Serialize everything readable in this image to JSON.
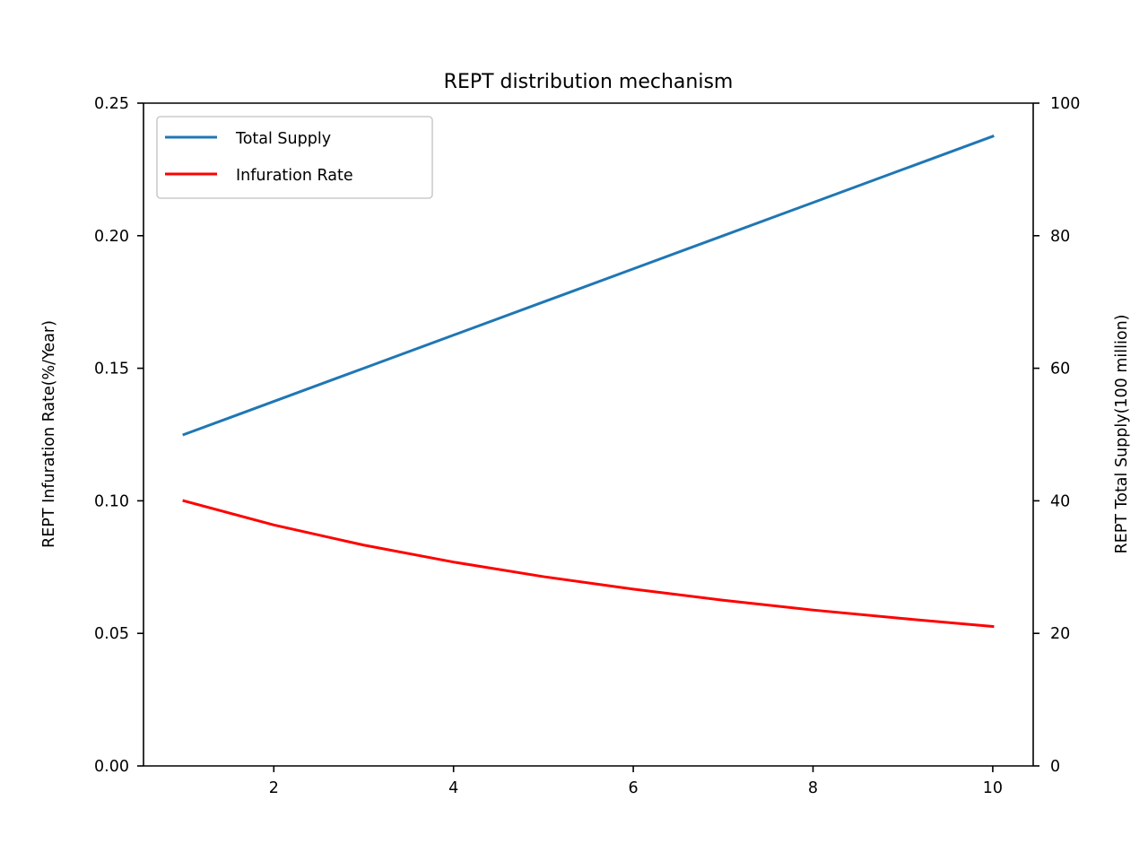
{
  "chart_data": {
    "type": "line",
    "title": "REPT distribution mechanism",
    "xlabel": "",
    "xlim": [
      0.55,
      10.45
    ],
    "x_ticks": [
      2,
      4,
      6,
      8,
      10
    ],
    "y_left": {
      "label": "REPT Infuration Rate(%/Year)",
      "lim": [
        0,
        0.25
      ],
      "ticks": [
        "0.00",
        "0.05",
        "0.10",
        "0.15",
        "0.20",
        "0.25"
      ]
    },
    "y_right": {
      "label": "REPT Total Supply(100 million)",
      "lim": [
        0,
        100
      ],
      "ticks": [
        "0",
        "20",
        "40",
        "60",
        "80",
        "100"
      ]
    },
    "x": [
      1,
      2,
      3,
      4,
      5,
      6,
      7,
      8,
      9,
      10
    ],
    "series": [
      {
        "name": "Total Supply",
        "axis": "right",
        "color": "#1f77b4",
        "values": [
          50,
          55,
          60,
          65,
          70,
          75,
          80,
          85,
          90,
          95
        ]
      },
      {
        "name": "Infuration Rate",
        "axis": "left",
        "color": "#ff0000",
        "values": [
          0.1,
          0.0909,
          0.0833,
          0.0769,
          0.0714,
          0.0667,
          0.0625,
          0.0588,
          0.0556,
          0.0526
        ]
      }
    ],
    "grid": false,
    "legend": {
      "placement": "top-left",
      "entries": [
        "Total Supply",
        "Infuration Rate"
      ]
    }
  }
}
